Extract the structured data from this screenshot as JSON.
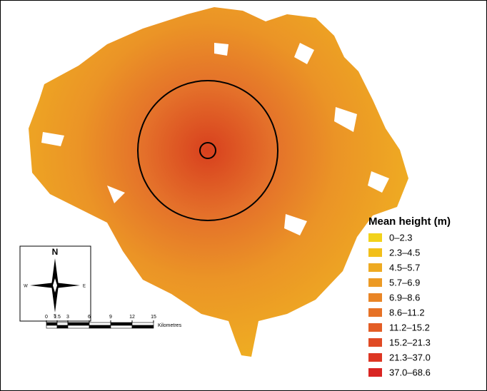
{
  "legend": {
    "title": "Mean height (m)",
    "items": [
      {
        "label": "0–2.3",
        "color": "#f2d21b"
      },
      {
        "label": "2.3–4.5",
        "color": "#f2bf1a"
      },
      {
        "label": "4.5–5.7",
        "color": "#eeaa22"
      },
      {
        "label": "5.7–6.9",
        "color": "#ec9a25"
      },
      {
        "label": "6.9–8.6",
        "color": "#e98526"
      },
      {
        "label": "8.6–11.2",
        "color": "#e67226"
      },
      {
        "label": "11.2–15.2",
        "color": "#e35d25"
      },
      {
        "label": "15.2–21.3",
        "color": "#e04a24"
      },
      {
        "label": "21.3–37.0",
        "color": "#dd3623"
      },
      {
        "label": "37.0–68.6",
        "color": "#d92522"
      }
    ]
  },
  "compass": {
    "north": "N",
    "west": "W",
    "east": "E",
    "south": "S"
  },
  "scale_bar": {
    "ticks": [
      0,
      1.5,
      3,
      6,
      9,
      12,
      15
    ],
    "unit": "Kilometres"
  }
}
